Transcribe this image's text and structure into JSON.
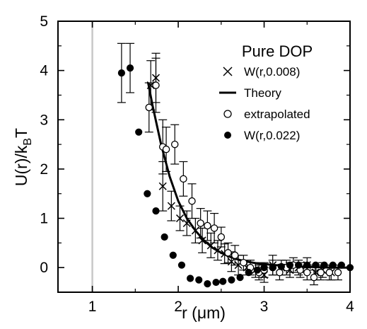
{
  "chart_data": {
    "type": "scatter",
    "xlabel_prefix": "r (",
    "xlabel_unit": "μm",
    "xlabel_suffix": ")",
    "ylabel_main": "U(r)/k",
    "ylabel_sub": "B",
    "ylabel_end": "T",
    "xlim": [
      0.6,
      4.0
    ],
    "ylim": [
      -0.5,
      5.0
    ],
    "x_ticks": [
      1,
      2,
      3,
      4
    ],
    "y_ticks": [
      0,
      1,
      2,
      3,
      4,
      5
    ],
    "reference_line_x": 1.0,
    "legend_title": "Pure DOP",
    "legend_placement": "top-right",
    "series": [
      {
        "name": "W(r,0.008)",
        "marker": "x",
        "x": [
          1.68,
          1.74,
          1.82,
          1.92,
          2.02,
          2.1,
          2.2,
          2.28,
          2.38,
          2.46,
          2.54,
          2.62,
          2.7,
          2.8,
          2.9,
          3.0,
          3.1,
          3.2,
          3.3,
          3.4,
          3.5,
          3.6,
          3.68,
          3.78
        ],
        "y": [
          3.7,
          3.85,
          1.65,
          1.25,
          1.0,
          0.9,
          0.75,
          0.55,
          0.45,
          0.35,
          0.28,
          0.12,
          0.05,
          0.0,
          -0.05,
          -0.15,
          0.05,
          0.0,
          -0.05,
          0.0,
          0.05,
          -0.1,
          -0.05,
          -0.1
        ],
        "err": [
          0.5,
          0.5,
          0.5,
          0.3,
          0.25,
          0.25,
          0.25,
          0.25,
          0.25,
          0.2,
          0.2,
          0.2,
          0.2,
          0.15,
          0.15,
          0.15,
          0.2,
          0.15,
          0.15,
          0.15,
          0.15,
          0.15,
          0.15,
          0.15
        ]
      },
      {
        "name": "Theory",
        "marker": "line",
        "x": [
          1.65,
          1.7,
          1.8,
          1.9,
          2.0,
          2.1,
          2.2,
          2.3,
          2.4,
          2.5,
          2.6,
          2.7,
          2.8,
          2.9,
          3.0,
          3.2,
          3.4,
          3.6,
          3.8,
          4.0
        ],
        "y": [
          3.75,
          3.3,
          2.5,
          1.85,
          1.35,
          1.0,
          0.75,
          0.55,
          0.4,
          0.3,
          0.22,
          0.16,
          0.12,
          0.09,
          0.07,
          0.04,
          0.02,
          0.01,
          0.0,
          0.0
        ]
      },
      {
        "name": "extrapolated",
        "marker": "open-circle",
        "x": [
          1.66,
          1.74,
          1.82,
          1.86,
          1.96,
          2.06,
          2.16,
          2.26,
          2.34,
          2.42,
          2.5,
          2.58,
          2.66,
          2.76,
          2.84,
          2.94,
          3.0,
          3.1,
          3.18,
          3.26,
          3.34,
          3.42,
          3.5,
          3.58,
          3.66,
          3.76,
          3.86
        ],
        "y": [
          3.25,
          3.7,
          2.45,
          2.4,
          2.5,
          1.8,
          1.35,
          0.9,
          0.85,
          0.8,
          0.62,
          0.3,
          0.25,
          0.1,
          0.0,
          -0.1,
          -0.05,
          0.0,
          -0.1,
          0.0,
          0.05,
          -0.05,
          -0.1,
          -0.2,
          -0.1,
          -0.1,
          -0.1
        ],
        "err": [
          0.5,
          0.55,
          0.55,
          0.45,
          0.4,
          0.35,
          0.35,
          0.3,
          0.3,
          0.3,
          0.2,
          0.2,
          0.2,
          0.15,
          0.15,
          0.15,
          0.15,
          0.15,
          0.15,
          0.15,
          0.15,
          0.15,
          0.15,
          0.15,
          0.15,
          0.15,
          0.15
        ]
      },
      {
        "name": "W(r,0.022)",
        "marker": "filled-circle",
        "x": [
          1.34,
          1.44,
          1.54,
          1.64,
          1.74,
          1.84,
          1.94,
          2.04,
          2.14,
          2.24,
          2.34,
          2.44,
          2.52,
          2.62,
          2.72,
          2.82,
          2.92,
          3.0,
          3.1,
          3.2,
          3.3,
          3.4,
          3.5,
          3.6,
          3.7,
          3.8,
          3.9,
          4.0
        ],
        "y": [
          3.95,
          4.05,
          2.75,
          1.5,
          1.15,
          0.62,
          0.25,
          0.05,
          -0.22,
          -0.25,
          -0.33,
          -0.3,
          -0.28,
          -0.25,
          -0.2,
          -0.1,
          -0.05,
          0.0,
          0.0,
          0.02,
          0.05,
          0.05,
          0.05,
          0.05,
          0.05,
          0.05,
          0.05,
          0.0
        ],
        "err": [
          0.6,
          0.5,
          0.0,
          0.0,
          0.0,
          0.0,
          0.0,
          0.0,
          0.0,
          0.0,
          0.0,
          0.0,
          0.0,
          0.0,
          0.0,
          0.0,
          0.0,
          0.0,
          0.0,
          0.0,
          0.0,
          0.0,
          0.0,
          0.0,
          0.0,
          0.0,
          0.0,
          0.0
        ]
      }
    ]
  }
}
